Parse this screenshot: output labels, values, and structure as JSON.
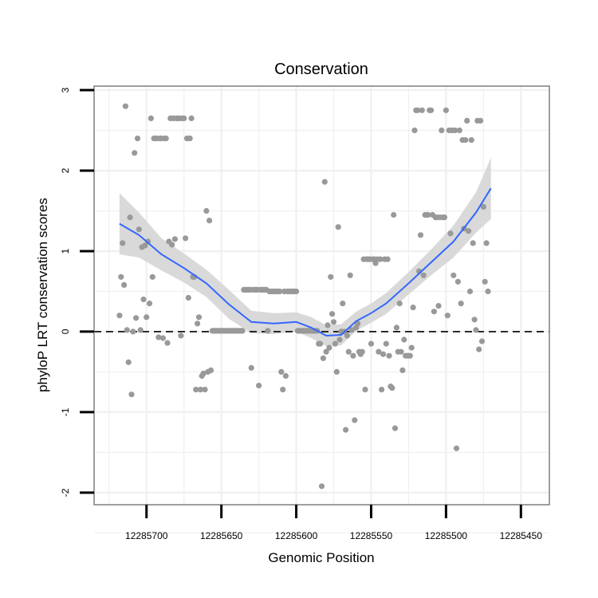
{
  "chart_data": {
    "type": "scatter",
    "title": "Conservation",
    "xlabel": "Genomic Position",
    "ylabel": "phyloP LRT conservation scores",
    "xlim": [
      12285735,
      12285431
    ],
    "ylim": [
      -2.15,
      3.05
    ],
    "x_reversed": true,
    "xticks": [
      12285700,
      12285650,
      12285600,
      12285550,
      12285500,
      12285450
    ],
    "yticks": [
      -2,
      -1,
      0,
      1,
      2,
      3
    ],
    "xtick_labels": [
      "12285700",
      "12285650",
      "12285600",
      "12285550",
      "12285500",
      "12285450"
    ],
    "ytick_labels": [
      "-2",
      "-1",
      "0",
      "1",
      "2",
      "3"
    ],
    "reference_line": {
      "y": 0,
      "style": "dashed",
      "color": "#000000"
    },
    "colors": {
      "points": "#999999",
      "smooth": "#3366ff",
      "ribbon": "#d9d9d9",
      "grid": "#f0f0f0",
      "frame": "#7f7f7f"
    },
    "points": [
      [
        12285718,
        0.2
      ],
      [
        12285717,
        0.68
      ],
      [
        12285716,
        1.1
      ],
      [
        12285715,
        0.58
      ],
      [
        12285714,
        2.8
      ],
      [
        12285713,
        0.02
      ],
      [
        12285712,
        -0.38
      ],
      [
        12285711,
        1.42
      ],
      [
        12285710,
        -0.78
      ],
      [
        12285709,
        0.0
      ],
      [
        12285708,
        2.22
      ],
      [
        12285707,
        0.17
      ],
      [
        12285706,
        2.4
      ],
      [
        12285705,
        1.27
      ],
      [
        12285704,
        0.02
      ],
      [
        12285703,
        1.05
      ],
      [
        12285702,
        0.4
      ],
      [
        12285701,
        1.07
      ],
      [
        12285700,
        0.18
      ],
      [
        12285699,
        1.12
      ],
      [
        12285698,
        0.35
      ],
      [
        12285697,
        2.65
      ],
      [
        12285696,
        0.68
      ],
      [
        12285695,
        2.4
      ],
      [
        12285694,
        2.4
      ],
      [
        12285693,
        2.4
      ],
      [
        12285692,
        -0.07
      ],
      [
        12285691,
        2.4
      ],
      [
        12285690,
        2.4
      ],
      [
        12285689,
        -0.08
      ],
      [
        12285688,
        2.4
      ],
      [
        12285687,
        2.4
      ],
      [
        12285686,
        -0.14
      ],
      [
        12285685,
        1.12
      ],
      [
        12285684,
        2.65
      ],
      [
        12285683,
        1.08
      ],
      [
        12285682,
        2.65
      ],
      [
        12285681,
        1.15
      ],
      [
        12285680,
        2.65
      ],
      [
        12285679,
        2.65
      ],
      [
        12285678,
        2.65
      ],
      [
        12285677,
        -0.05
      ],
      [
        12285676,
        2.65
      ],
      [
        12285675,
        2.65
      ],
      [
        12285674,
        1.16
      ],
      [
        12285673,
        2.4
      ],
      [
        12285672,
        0.42
      ],
      [
        12285671,
        2.4
      ],
      [
        12285670,
        2.65
      ],
      [
        12285669,
        0.68
      ],
      [
        12285668,
        0.68
      ],
      [
        12285667,
        -0.72
      ],
      [
        12285666,
        0.1
      ],
      [
        12285665,
        0.18
      ],
      [
        12285664,
        -0.72
      ],
      [
        12285663,
        -0.55
      ],
      [
        12285662,
        -0.52
      ],
      [
        12285661,
        -0.72
      ],
      [
        12285660,
        1.5
      ],
      [
        12285659,
        -0.5
      ],
      [
        12285658,
        1.38
      ],
      [
        12285657,
        -0.48
      ],
      [
        12285656,
        0.01
      ],
      [
        12285655,
        0.01
      ],
      [
        12285654,
        0.01
      ],
      [
        12285653,
        0.01
      ],
      [
        12285652,
        0.01
      ],
      [
        12285651,
        0.01
      ],
      [
        12285650,
        0.01
      ],
      [
        12285649,
        0.01
      ],
      [
        12285648,
        0.01
      ],
      [
        12285647,
        0.01
      ],
      [
        12285646,
        0.01
      ],
      [
        12285645,
        0.01
      ],
      [
        12285644,
        0.01
      ],
      [
        12285643,
        0.01
      ],
      [
        12285642,
        0.01
      ],
      [
        12285641,
        0.01
      ],
      [
        12285640,
        0.01
      ],
      [
        12285639,
        0.01
      ],
      [
        12285638,
        0.01
      ],
      [
        12285637,
        0.01
      ],
      [
        12285636,
        0.01
      ],
      [
        12285635,
        0.52
      ],
      [
        12285634,
        0.52
      ],
      [
        12285633,
        0.52
      ],
      [
        12285632,
        0.52
      ],
      [
        12285631,
        0.52
      ],
      [
        12285630,
        -0.45
      ],
      [
        12285629,
        0.52
      ],
      [
        12285628,
        0.52
      ],
      [
        12285627,
        0.52
      ],
      [
        12285626,
        0.52
      ],
      [
        12285625,
        -0.67
      ],
      [
        12285624,
        0.52
      ],
      [
        12285623,
        0.52
      ],
      [
        12285622,
        0.52
      ],
      [
        12285621,
        0.52
      ],
      [
        12285620,
        0.52
      ],
      [
        12285619,
        0.01
      ],
      [
        12285618,
        0.5
      ],
      [
        12285617,
        0.5
      ],
      [
        12285616,
        0.5
      ],
      [
        12285615,
        0.5
      ],
      [
        12285614,
        0.5
      ],
      [
        12285613,
        0.5
      ],
      [
        12285612,
        0.5
      ],
      [
        12285611,
        0.5
      ],
      [
        12285610,
        -0.5
      ],
      [
        12285609,
        -0.72
      ],
      [
        12285608,
        0.5
      ],
      [
        12285607,
        -0.55
      ],
      [
        12285606,
        0.5
      ],
      [
        12285605,
        0.5
      ],
      [
        12285604,
        0.5
      ],
      [
        12285603,
        0.5
      ],
      [
        12285602,
        0.5
      ],
      [
        12285601,
        0.5
      ],
      [
        12285600,
        0.5
      ],
      [
        12285599,
        0.01
      ],
      [
        12285598,
        0.01
      ],
      [
        12285597,
        0.01
      ],
      [
        12285596,
        0.01
      ],
      [
        12285595,
        0.01
      ],
      [
        12285594,
        0.01
      ],
      [
        12285593,
        0.01
      ],
      [
        12285592,
        0.01
      ],
      [
        12285591,
        0.01
      ],
      [
        12285590,
        0.01
      ],
      [
        12285589,
        0.01
      ],
      [
        12285588,
        0.01
      ],
      [
        12285587,
        0.01
      ],
      [
        12285586,
        0.01
      ],
      [
        12285585,
        -0.15
      ],
      [
        12285584,
        -0.15
      ],
      [
        12285583,
        -1.92
      ],
      [
        12285582,
        -0.33
      ],
      [
        12285581,
        1.86
      ],
      [
        12285580,
        -0.25
      ],
      [
        12285579,
        0.08
      ],
      [
        12285578,
        -0.2
      ],
      [
        12285577,
        0.68
      ],
      [
        12285576,
        0.22
      ],
      [
        12285575,
        0.12
      ],
      [
        12285574,
        -0.15
      ],
      [
        12285573,
        -0.5
      ],
      [
        12285572,
        1.3
      ],
      [
        12285571,
        -0.1
      ],
      [
        12285570,
        0.0
      ],
      [
        12285569,
        0.35
      ],
      [
        12285568,
        0.0
      ],
      [
        12285567,
        -1.22
      ],
      [
        12285566,
        -0.05
      ],
      [
        12285565,
        -0.25
      ],
      [
        12285564,
        0.7
      ],
      [
        12285563,
        0.02
      ],
      [
        12285562,
        -0.3
      ],
      [
        12285561,
        -1.1
      ],
      [
        12285560,
        0.05
      ],
      [
        12285559,
        0.1
      ],
      [
        12285558,
        -0.25
      ],
      [
        12285557,
        -0.28
      ],
      [
        12285556,
        -0.25
      ],
      [
        12285555,
        0.9
      ],
      [
        12285554,
        -0.72
      ],
      [
        12285553,
        0.9
      ],
      [
        12285552,
        0.9
      ],
      [
        12285551,
        0.9
      ],
      [
        12285550,
        -0.15
      ],
      [
        12285549,
        0.9
      ],
      [
        12285548,
        0.9
      ],
      [
        12285547,
        0.85
      ],
      [
        12285546,
        0.9
      ],
      [
        12285545,
        -0.25
      ],
      [
        12285544,
        0.9
      ],
      [
        12285543,
        -0.72
      ],
      [
        12285542,
        -0.28
      ],
      [
        12285541,
        0.9
      ],
      [
        12285540,
        -0.15
      ],
      [
        12285539,
        0.9
      ],
      [
        12285538,
        -0.3
      ],
      [
        12285537,
        -0.68
      ],
      [
        12285536,
        -0.7
      ],
      [
        12285535,
        1.45
      ],
      [
        12285534,
        -1.2
      ],
      [
        12285533,
        0.05
      ],
      [
        12285532,
        -0.25
      ],
      [
        12285531,
        0.35
      ],
      [
        12285530,
        -0.25
      ],
      [
        12285529,
        -0.48
      ],
      [
        12285528,
        -0.1
      ],
      [
        12285527,
        -0.3
      ],
      [
        12285526,
        -0.3
      ],
      [
        12285525,
        -0.3
      ],
      [
        12285524,
        -0.3
      ],
      [
        12285523,
        -0.2
      ],
      [
        12285522,
        0.3
      ],
      [
        12285521,
        2.5
      ],
      [
        12285520,
        2.75
      ],
      [
        12285519,
        2.75
      ],
      [
        12285518,
        0.75
      ],
      [
        12285517,
        1.2
      ],
      [
        12285516,
        2.75
      ],
      [
        12285515,
        0.7
      ],
      [
        12285514,
        1.45
      ],
      [
        12285513,
        1.45
      ],
      [
        12285512,
        1.45
      ],
      [
        12285511,
        2.75
      ],
      [
        12285510,
        2.75
      ],
      [
        12285509,
        1.45
      ],
      [
        12285508,
        0.25
      ],
      [
        12285507,
        1.42
      ],
      [
        12285506,
        1.42
      ],
      [
        12285505,
        0.32
      ],
      [
        12285504,
        1.42
      ],
      [
        12285503,
        2.5
      ],
      [
        12285502,
        1.42
      ],
      [
        12285501,
        1.42
      ],
      [
        12285500,
        2.75
      ],
      [
        12285499,
        0.2
      ],
      [
        12285498,
        2.5
      ],
      [
        12285497,
        1.22
      ],
      [
        12285496,
        2.5
      ],
      [
        12285495,
        0.7
      ],
      [
        12285494,
        2.5
      ],
      [
        12285493,
        -1.45
      ],
      [
        12285492,
        0.62
      ],
      [
        12285491,
        2.5
      ],
      [
        12285490,
        0.35
      ],
      [
        12285489,
        2.38
      ],
      [
        12285488,
        1.28
      ],
      [
        12285487,
        2.38
      ],
      [
        12285486,
        2.62
      ],
      [
        12285485,
        1.25
      ],
      [
        12285484,
        0.5
      ],
      [
        12285483,
        2.38
      ],
      [
        12285482,
        1.1
      ],
      [
        12285481,
        0.15
      ],
      [
        12285480,
        0.02
      ],
      [
        12285479,
        2.62
      ],
      [
        12285478,
        -0.22
      ],
      [
        12285477,
        2.62
      ],
      [
        12285476,
        -0.12
      ],
      [
        12285475,
        1.55
      ],
      [
        12285474,
        0.62
      ],
      [
        12285473,
        1.1
      ],
      [
        12285472,
        0.5
      ]
    ],
    "smooth": {
      "x": [
        12285718,
        12285705,
        12285690,
        12285675,
        12285660,
        12285645,
        12285630,
        12285615,
        12285600,
        12285590,
        12285580,
        12285570,
        12285560,
        12285550,
        12285540,
        12285525,
        12285510,
        12285495,
        12285480,
        12285470
      ],
      "y": [
        1.34,
        1.2,
        0.96,
        0.79,
        0.6,
        0.34,
        0.12,
        0.1,
        0.12,
        0.05,
        -0.05,
        -0.04,
        0.13,
        0.23,
        0.35,
        0.6,
        0.86,
        1.12,
        1.48,
        1.78
      ]
    },
    "ribbon_halfwidth": [
      0.38,
      0.28,
      0.2,
      0.18,
      0.17,
      0.18,
      0.14,
      0.13,
      0.12,
      0.13,
      0.13,
      0.13,
      0.12,
      0.12,
      0.13,
      0.14,
      0.16,
      0.2,
      0.25,
      0.38
    ]
  }
}
